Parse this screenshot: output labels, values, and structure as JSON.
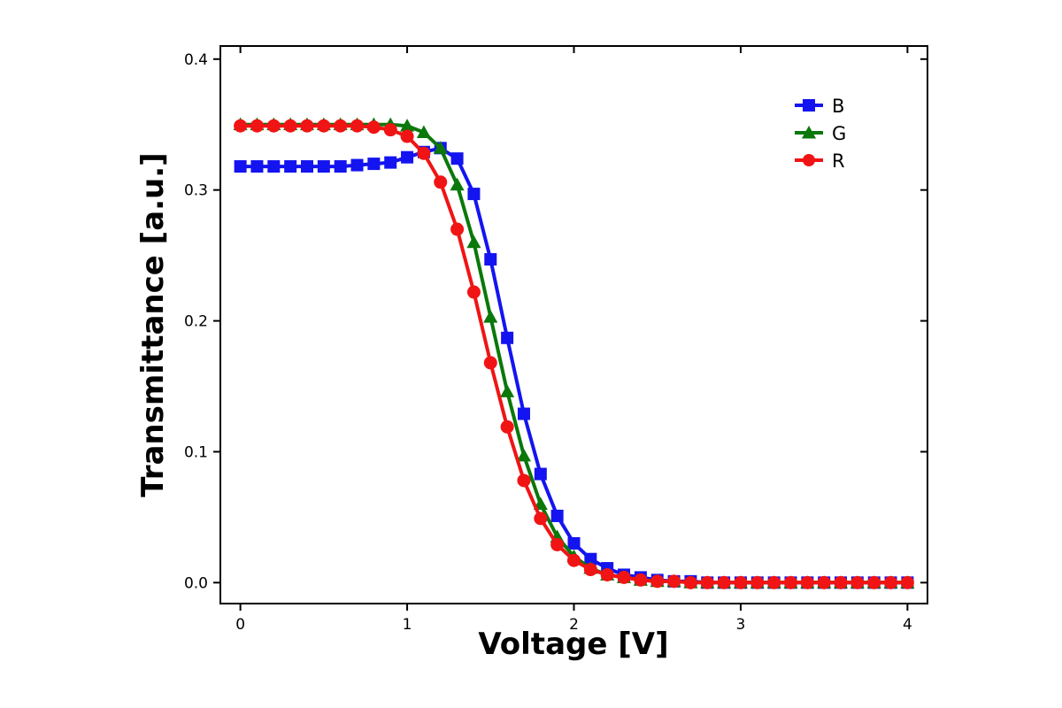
{
  "chart_data": {
    "type": "line",
    "xlabel": "Voltage [V]",
    "ylabel": "Transmittance [a.u.]",
    "xlim": [
      -0.12,
      4.12
    ],
    "ylim": [
      -0.016,
      0.41
    ],
    "xticks": [
      0,
      1,
      2,
      3,
      4
    ],
    "xtick_labels": [
      "0",
      "1",
      "2",
      "3",
      "4"
    ],
    "yticks": [
      0.0,
      0.1,
      0.2,
      0.3,
      0.4
    ],
    "ytick_labels": [
      "0.0",
      "0.1",
      "0.2",
      "0.3",
      "0.4"
    ],
    "grid": false,
    "legend_position": "top-right",
    "x": [
      0,
      0.1,
      0.2,
      0.3,
      0.4,
      0.5,
      0.6,
      0.7,
      0.8,
      0.9,
      1.0,
      1.1,
      1.2,
      1.3,
      1.4,
      1.5,
      1.6,
      1.7,
      1.8,
      1.9,
      2.0,
      2.1,
      2.2,
      2.3,
      2.4,
      2.5,
      2.6,
      2.7,
      2.8,
      2.9,
      3.0,
      3.1,
      3.2,
      3.3,
      3.4,
      3.5,
      3.6,
      3.7,
      3.8,
      3.9,
      4.0
    ],
    "series": [
      {
        "name": "B",
        "color": "#1414f0",
        "marker": "square",
        "values": [
          0.318,
          0.318,
          0.318,
          0.318,
          0.318,
          0.318,
          0.318,
          0.319,
          0.32,
          0.321,
          0.325,
          0.329,
          0.332,
          0.324,
          0.297,
          0.247,
          0.187,
          0.129,
          0.083,
          0.051,
          0.03,
          0.018,
          0.011,
          0.006,
          0.004,
          0.002,
          0.001,
          0.001,
          0.0,
          0.0,
          0.0,
          0.0,
          0.0,
          0.0,
          0.0,
          0.0,
          0.0,
          0.0,
          0.0,
          0.0,
          0.0
        ]
      },
      {
        "name": "G",
        "color": "#0a780a",
        "marker": "triangle",
        "values": [
          0.35,
          0.35,
          0.35,
          0.35,
          0.35,
          0.35,
          0.35,
          0.35,
          0.35,
          0.35,
          0.349,
          0.344,
          0.332,
          0.304,
          0.26,
          0.203,
          0.146,
          0.097,
          0.06,
          0.035,
          0.02,
          0.011,
          0.006,
          0.004,
          0.002,
          0.001,
          0.001,
          0.0,
          0.0,
          0.0,
          0.0,
          0.0,
          0.0,
          0.0,
          0.0,
          0.0,
          0.0,
          0.0,
          0.0,
          0.0,
          0.0
        ]
      },
      {
        "name": "R",
        "color": "#f01414",
        "marker": "circle",
        "values": [
          0.349,
          0.349,
          0.349,
          0.349,
          0.349,
          0.349,
          0.349,
          0.349,
          0.348,
          0.346,
          0.341,
          0.328,
          0.306,
          0.27,
          0.222,
          0.168,
          0.119,
          0.078,
          0.049,
          0.029,
          0.017,
          0.01,
          0.006,
          0.004,
          0.002,
          0.001,
          0.001,
          0.0,
          0.0,
          0.0,
          0.0,
          0.0,
          0.0,
          0.0,
          0.0,
          0.0,
          0.0,
          0.0,
          0.0,
          0.0,
          0.0
        ]
      }
    ]
  }
}
